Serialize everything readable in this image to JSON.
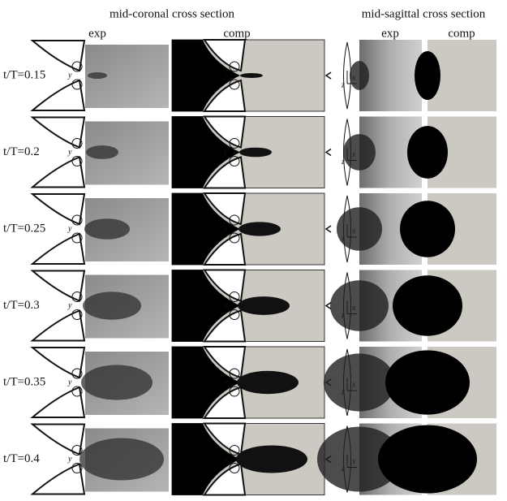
{
  "headers": {
    "coronal": "mid-coronal cross section",
    "sagittal": "mid-sagittal cross section"
  },
  "columns": [
    "exp",
    "comp",
    "exp",
    "comp"
  ],
  "rows": [
    {
      "label": "t/T=0.15"
    },
    {
      "label": "t/T=0.2"
    },
    {
      "label": "t/T=0.25"
    },
    {
      "label": "t/T=0.3"
    },
    {
      "label": "t/T=0.35"
    },
    {
      "label": "t/T=0.4"
    }
  ],
  "axis_labels": {
    "y": "y",
    "x": "x",
    "z": "z"
  }
}
